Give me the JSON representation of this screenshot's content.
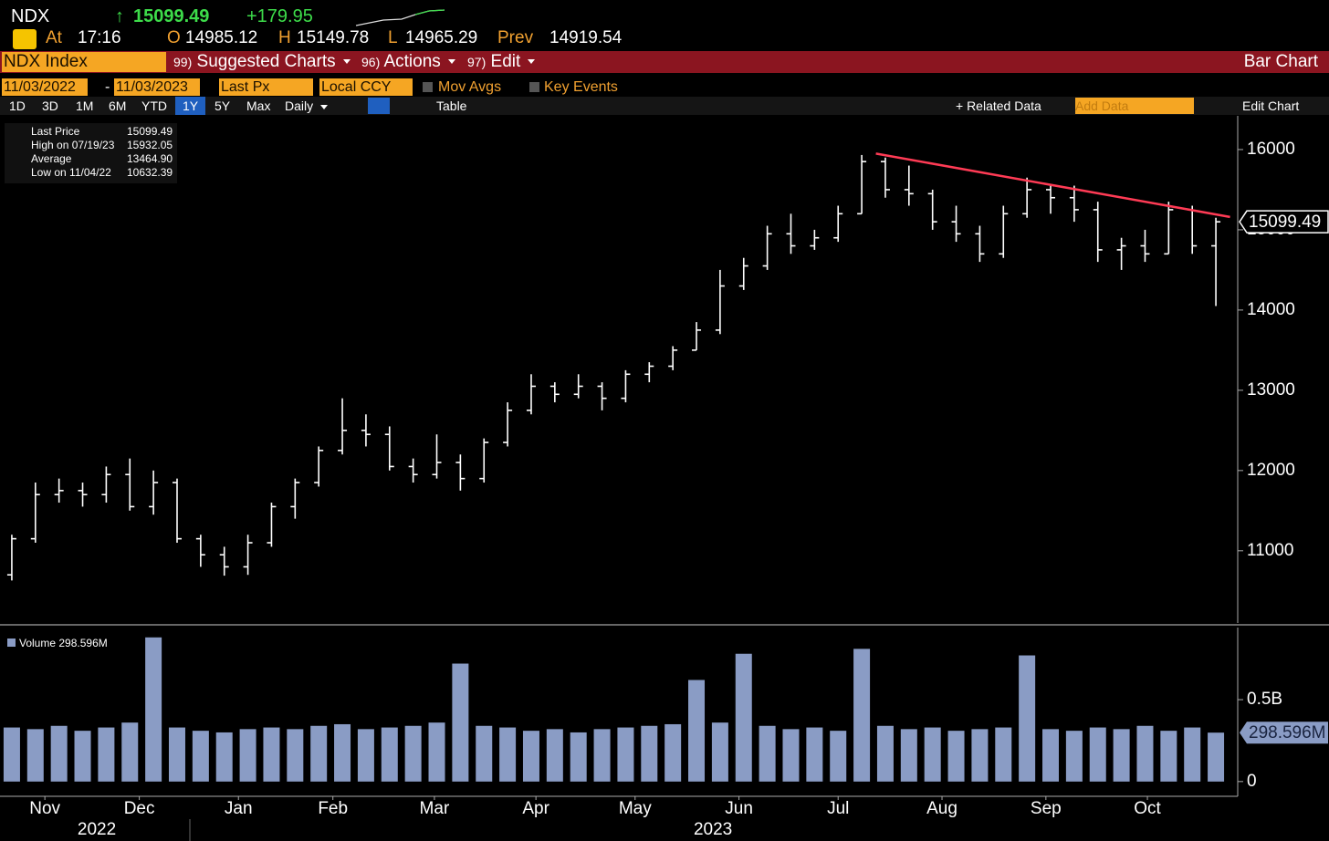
{
  "header": {
    "ticker": "NDX",
    "direction": "↑",
    "price": "15099.49",
    "change": "+179.95",
    "time_label": "At",
    "time": "17:16",
    "open_label": "O",
    "open": "14985.12",
    "high_label": "H",
    "high": "15149.78",
    "low_label": "L",
    "low": "14965.29",
    "prev_label": "Prev",
    "prev": "14919.54"
  },
  "menu": {
    "security": "NDX Index",
    "items": [
      {
        "code": "99)",
        "label": "Suggested Charts"
      },
      {
        "code": "96)",
        "label": "Actions"
      },
      {
        "code": "97)",
        "label": "Edit"
      }
    ],
    "view": "Bar Chart"
  },
  "settings": {
    "start": "11/03/2022",
    "dash": "-",
    "end": "11/03/2023",
    "field": "Last Px",
    "currency": "Local CCY",
    "options": [
      "Mov Avgs",
      "Key Events"
    ]
  },
  "toolbar": {
    "periods": [
      "1D",
      "3D",
      "1M",
      "6M",
      "YTD",
      "1Y",
      "5Y",
      "Max"
    ],
    "active": "1Y",
    "frequency": "Daily",
    "table": "Table",
    "related": "+ Related Data",
    "add": "Add Data",
    "edit": "Edit Chart"
  },
  "legend": [
    {
      "label": "Last Price",
      "value": "15099.49"
    },
    {
      "label": "High on 07/19/23",
      "value": "15932.05"
    },
    {
      "label": "Average",
      "value": "13464.90"
    },
    {
      "label": "Low on 11/04/22",
      "value": "10632.39"
    }
  ],
  "chart_data": [
    {
      "type": "ohlc",
      "color": "#ffffff",
      "xlim": [
        -0.5,
        51.5
      ],
      "xticks": [
        {
          "value": 1.4,
          "label": "Nov"
        },
        {
          "value": 5.4,
          "label": "Dec"
        },
        {
          "value": 9.6,
          "label": "Jan"
        },
        {
          "value": 13.6,
          "label": "Feb"
        },
        {
          "value": 17.9,
          "label": "Mar"
        },
        {
          "value": 22.2,
          "label": "Apr"
        },
        {
          "value": 26.4,
          "label": "May"
        },
        {
          "value": 30.8,
          "label": "Jun"
        },
        {
          "value": 35,
          "label": "Jul"
        },
        {
          "value": 39.4,
          "label": "Aug"
        },
        {
          "value": 43.8,
          "label": "Sep"
        },
        {
          "value": 48.1,
          "label": "Oct"
        }
      ],
      "years": [
        {
          "value": 3.6,
          "label": "2022"
        },
        {
          "value": 29.7,
          "label": "2023"
        }
      ],
      "ylim": [
        10100,
        16420
      ],
      "yticks": [
        11000,
        12000,
        13000,
        14000,
        15000,
        16000
      ],
      "last_value": 15099.49,
      "last_label": "15099.49",
      "open": [
        10700,
        11150,
        11700,
        11750,
        11700,
        11950,
        11550,
        11850,
        11150,
        10950,
        10800,
        11100,
        11550,
        11850,
        12250,
        12500,
        12450,
        12050,
        11950,
        12100,
        11900,
        12350,
        12750,
        13050,
        12950,
        13050,
        12900,
        13200,
        13300,
        13500,
        13750,
        14300,
        14550,
        14950,
        14800,
        14900,
        15200,
        15850,
        15500,
        15450,
        15100,
        14950,
        14700,
        15200,
        15500,
        15400,
        15250,
        14750,
        14800,
        14700,
        15250,
        14800
      ],
      "high": [
        11200,
        11850,
        11900,
        11850,
        12050,
        12150,
        12000,
        11900,
        11200,
        11050,
        11200,
        11600,
        11900,
        12300,
        12900,
        12700,
        12550,
        12150,
        12450,
        12200,
        12400,
        12850,
        13200,
        13100,
        13200,
        13100,
        13250,
        13350,
        13550,
        13850,
        14500,
        14650,
        15050,
        15200,
        15000,
        15300,
        15932,
        15900,
        15800,
        15500,
        15300,
        15050,
        15300,
        15650,
        15550,
        15550,
        15350,
        14900,
        15000,
        15350,
        15300,
        15150
      ],
      "low": [
        10630,
        11100,
        11600,
        11550,
        11600,
        11500,
        11450,
        11100,
        10800,
        10690,
        10700,
        11050,
        11400,
        11800,
        12200,
        12300,
        12000,
        11850,
        11900,
        11750,
        11850,
        12300,
        12700,
        12850,
        12900,
        12750,
        12850,
        13100,
        13250,
        13500,
        13700,
        14250,
        14500,
        14700,
        14750,
        14850,
        15200,
        15400,
        15300,
        15000,
        14850,
        14600,
        14650,
        15150,
        15200,
        15100,
        14600,
        14500,
        14600,
        14700,
        14700,
        14050
      ],
      "close": [
        11150,
        11700,
        11750,
        11700,
        11950,
        11550,
        11850,
        11150,
        10950,
        10800,
        11100,
        11550,
        11850,
        12250,
        12500,
        12450,
        12050,
        11950,
        12100,
        11900,
        12350,
        12750,
        13050,
        12950,
        13050,
        12900,
        13200,
        13300,
        13500,
        13750,
        14300,
        14550,
        14950,
        14800,
        14900,
        15200,
        15850,
        15500,
        15450,
        15100,
        14950,
        14700,
        15200,
        15500,
        15400,
        15250,
        14750,
        14800,
        14700,
        15250,
        14800,
        15099.49
      ],
      "trendline": {
        "color": "#ff3b55",
        "x": [
          36.6,
          51.6
        ],
        "values": [
          15950,
          15160
        ]
      }
    },
    {
      "type": "bar",
      "name": "Volume",
      "name_value": "298.596M",
      "color": "#8a9cc5",
      "ylim": [
        -0.09,
        0.94
      ],
      "yticks": [
        0,
        {
          "value": 0.5,
          "label": "0.5B"
        }
      ],
      "last_value": 0.298596,
      "last_label": "298.596M",
      "values": [
        0.33,
        0.32,
        0.34,
        0.31,
        0.33,
        0.36,
        0.88,
        0.33,
        0.31,
        0.3,
        0.32,
        0.33,
        0.32,
        0.34,
        0.35,
        0.32,
        0.33,
        0.34,
        0.36,
        0.72,
        0.34,
        0.33,
        0.31,
        0.32,
        0.3,
        0.32,
        0.33,
        0.34,
        0.35,
        0.62,
        0.36,
        0.78,
        0.34,
        0.32,
        0.33,
        0.31,
        0.81,
        0.34,
        0.32,
        0.33,
        0.31,
        0.32,
        0.33,
        0.77,
        0.32,
        0.31,
        0.33,
        0.32,
        0.34,
        0.31,
        0.33,
        0.298596
      ]
    }
  ]
}
